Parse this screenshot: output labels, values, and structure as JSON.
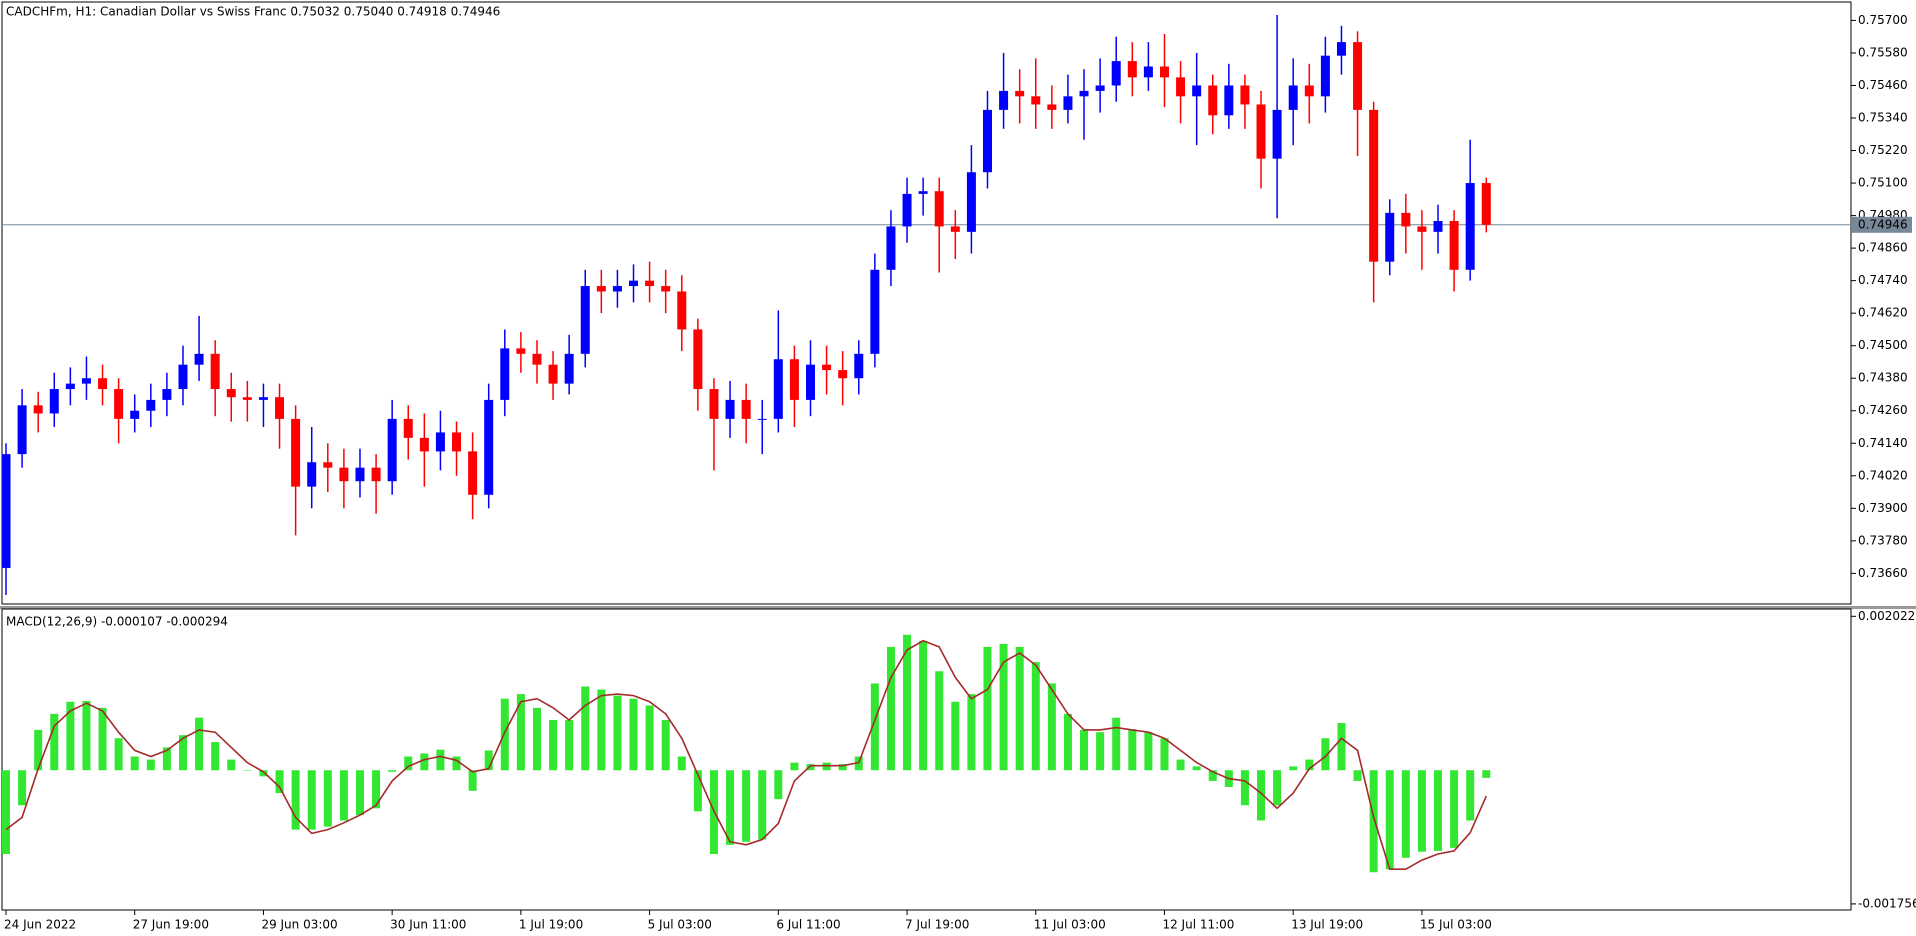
{
  "chart_data": [
    {
      "type": "candlestick",
      "title": "CADCHFm, H1:  Canadian Dollar vs Swiss Franc  0.75032 0.75040 0.74918 0.74946",
      "up_color": "#0000ff",
      "down_color": "#ff0000",
      "categories": [
        "24 Jun 2022",
        null,
        null,
        null,
        null,
        null,
        null,
        null,
        "27 Jun 19:00",
        null,
        null,
        null,
        null,
        null,
        null,
        null,
        "29 Jun 03:00",
        null,
        null,
        null,
        null,
        null,
        null,
        null,
        "30 Jun 11:00",
        null,
        null,
        null,
        null,
        null,
        null,
        null,
        "1 Jul 19:00",
        null,
        null,
        null,
        null,
        null,
        null,
        null,
        "5 Jul 03:00",
        null,
        null,
        null,
        null,
        null,
        null,
        null,
        "6 Jul 11:00",
        null,
        null,
        null,
        null,
        null,
        null,
        null,
        "7 Jul 19:00",
        null,
        null,
        null,
        null,
        null,
        null,
        null,
        "11 Jul 03:00",
        null,
        null,
        null,
        null,
        null,
        null,
        null,
        "12 Jul 11:00",
        null,
        null,
        null,
        null,
        null,
        null,
        null,
        "13 Jul 19:00",
        null,
        null,
        null,
        null,
        null,
        null,
        null,
        "15 Jul 03:00",
        null,
        null,
        null,
        null
      ],
      "open": [
        0.7368,
        0.741,
        0.7428,
        0.7425,
        0.7434,
        0.7436,
        0.7438,
        0.7434,
        0.7423,
        0.7426,
        0.743,
        0.7434,
        0.7443,
        0.7447,
        0.7434,
        0.7431,
        0.743,
        0.7431,
        0.7423,
        0.7398,
        0.7407,
        0.7405,
        0.74,
        0.7405,
        0.74,
        0.7423,
        0.7416,
        0.7411,
        0.7418,
        0.7411,
        0.7395,
        0.743,
        0.7449,
        0.7447,
        0.7443,
        0.7436,
        0.7447,
        0.7472,
        0.747,
        0.7472,
        0.7474,
        0.7472,
        0.747,
        0.7456,
        0.7434,
        0.7423,
        0.743,
        0.7423,
        0.7423,
        0.7445,
        0.743,
        0.7443,
        0.7441,
        0.7438,
        0.7447,
        0.7478,
        0.7494,
        0.7506,
        0.7507,
        0.7494,
        0.7492,
        0.7514,
        0.7537,
        0.7544,
        0.7542,
        0.7539,
        0.7537,
        0.7542,
        0.7544,
        0.7546,
        0.7555,
        0.7549,
        0.7553,
        0.7549,
        0.7542,
        0.7546,
        0.7535,
        0.7546,
        0.7539,
        0.7519,
        0.7537,
        0.7546,
        0.7542,
        0.7557,
        0.7562,
        0.7537,
        0.7481,
        0.7499,
        0.7494,
        0.7492,
        0.7496,
        0.7478,
        0.751
      ],
      "high": [
        0.7414,
        0.7434,
        0.7433,
        0.744,
        0.7442,
        0.7446,
        0.7443,
        0.7438,
        0.7432,
        0.7436,
        0.744,
        0.745,
        0.7461,
        0.7452,
        0.744,
        0.7437,
        0.7436,
        0.7436,
        0.7428,
        0.742,
        0.7414,
        0.7412,
        0.7412,
        0.741,
        0.743,
        0.7428,
        0.7425,
        0.7426,
        0.7422,
        0.7418,
        0.7436,
        0.7456,
        0.7455,
        0.7452,
        0.7448,
        0.7454,
        0.7478,
        0.7478,
        0.7478,
        0.748,
        0.7481,
        0.7478,
        0.7476,
        0.746,
        0.7438,
        0.7437,
        0.7436,
        0.743,
        0.7463,
        0.745,
        0.7452,
        0.745,
        0.7448,
        0.7452,
        0.7484,
        0.75,
        0.7512,
        0.7512,
        0.7512,
        0.75,
        0.7524,
        0.7544,
        0.7558,
        0.7552,
        0.7556,
        0.7546,
        0.755,
        0.7552,
        0.7556,
        0.7564,
        0.7562,
        0.7562,
        0.7565,
        0.7555,
        0.7558,
        0.755,
        0.7554,
        0.755,
        0.7544,
        0.7572,
        0.7556,
        0.7554,
        0.7564,
        0.7568,
        0.7566,
        0.754,
        0.7504,
        0.7506,
        0.75,
        0.7502,
        0.75,
        0.7526,
        0.7512
      ],
      "low": [
        0.7358,
        0.7405,
        0.7418,
        0.742,
        0.7428,
        0.743,
        0.7428,
        0.7414,
        0.7418,
        0.742,
        0.7424,
        0.7428,
        0.7437,
        0.7424,
        0.7422,
        0.7422,
        0.742,
        0.7412,
        0.738,
        0.739,
        0.7396,
        0.739,
        0.7394,
        0.7388,
        0.7395,
        0.7408,
        0.7398,
        0.7404,
        0.7402,
        0.7386,
        0.739,
        0.7424,
        0.744,
        0.7436,
        0.743,
        0.7432,
        0.7442,
        0.7462,
        0.7464,
        0.7466,
        0.7466,
        0.7462,
        0.7448,
        0.7426,
        0.7404,
        0.7416,
        0.7414,
        0.741,
        0.7418,
        0.742,
        0.7424,
        0.7432,
        0.7428,
        0.7432,
        0.7442,
        0.7472,
        0.7488,
        0.7498,
        0.7477,
        0.7482,
        0.7484,
        0.7508,
        0.753,
        0.7532,
        0.753,
        0.753,
        0.7532,
        0.7526,
        0.7536,
        0.754,
        0.7542,
        0.7544,
        0.7538,
        0.7532,
        0.7524,
        0.7528,
        0.753,
        0.753,
        0.7508,
        0.7497,
        0.7524,
        0.7532,
        0.7536,
        0.755,
        0.752,
        0.7466,
        0.7476,
        0.7484,
        0.7478,
        0.7484,
        0.747,
        0.7474,
        0.74918
      ],
      "close": [
        0.741,
        0.7428,
        0.7425,
        0.7434,
        0.7436,
        0.7438,
        0.7434,
        0.7423,
        0.7426,
        0.743,
        0.7434,
        0.7443,
        0.7447,
        0.7434,
        0.7431,
        0.743,
        0.7431,
        0.7423,
        0.7398,
        0.7407,
        0.7405,
        0.74,
        0.7405,
        0.74,
        0.7423,
        0.7416,
        0.7411,
        0.7418,
        0.7411,
        0.7395,
        0.743,
        0.7449,
        0.7447,
        0.7443,
        0.7436,
        0.7447,
        0.7472,
        0.747,
        0.7472,
        0.7474,
        0.7472,
        0.747,
        0.7456,
        0.7434,
        0.7423,
        0.743,
        0.7423,
        0.7423,
        0.7445,
        0.743,
        0.7443,
        0.7441,
        0.7438,
        0.7447,
        0.7478,
        0.7494,
        0.7506,
        0.7507,
        0.7494,
        0.7492,
        0.7514,
        0.7537,
        0.7544,
        0.7542,
        0.7539,
        0.7537,
        0.7542,
        0.7544,
        0.7546,
        0.7555,
        0.7549,
        0.7553,
        0.7549,
        0.7542,
        0.7546,
        0.7535,
        0.7546,
        0.7539,
        0.7519,
        0.7537,
        0.7546,
        0.7542,
        0.7557,
        0.7562,
        0.7537,
        0.7481,
        0.7499,
        0.7494,
        0.7492,
        0.7496,
        0.7478,
        0.751,
        0.74946
      ],
      "price_line": 0.74946,
      "price_line_color": "#778899",
      "ylim": [
        0.73547,
        0.75768
      ],
      "yticks": [
        {
          "value": 0.7366,
          "label": "0.73660"
        },
        {
          "value": 0.7378,
          "label": "0.73780"
        },
        {
          "value": 0.739,
          "label": "0.73900"
        },
        {
          "value": 0.7402,
          "label": "0.74020"
        },
        {
          "value": 0.7414,
          "label": "0.74140"
        },
        {
          "value": 0.7426,
          "label": "0.74260"
        },
        {
          "value": 0.7438,
          "label": "0.74380"
        },
        {
          "value": 0.745,
          "label": "0.74500"
        },
        {
          "value": 0.7462,
          "label": "0.74620"
        },
        {
          "value": 0.7474,
          "label": "0.74740"
        },
        {
          "value": 0.7486,
          "label": "0.74860"
        },
        {
          "value": 0.7498,
          "label": "0.74980"
        },
        {
          "value": 0.751,
          "label": "0.75100"
        },
        {
          "value": 0.7522,
          "label": "0.75220"
        },
        {
          "value": 0.7534,
          "label": "0.75340"
        },
        {
          "value": 0.7546,
          "label": "0.75460"
        },
        {
          "value": 0.7558,
          "label": "0.75580"
        },
        {
          "value": 0.757,
          "label": "0.75700"
        }
      ]
    },
    {
      "type": "macd",
      "title": "MACD(12,26,9) -0.000107 -0.000294",
      "histogram": {
        "color": "#32e632",
        "values": [
          -0.0011,
          -0.00046,
          0.00053,
          0.00074,
          0.0009,
          0.00091,
          0.00082,
          0.00042,
          0.00018,
          0.00014,
          0.0003,
          0.00046,
          0.00069,
          0.00037,
          0.00014,
          0,
          -8e-05,
          -0.0003,
          -0.00078,
          -0.00078,
          -0.00074,
          -0.00066,
          -0.00059,
          -0.0005,
          -2e-05,
          0.00018,
          0.00022,
          0.00027,
          0.00018,
          -0.00027,
          0.00026,
          0.00094,
          0.001,
          0.00082,
          0.00066,
          0.00066,
          0.0011,
          0.00106,
          0.00098,
          0.00094,
          0.00085,
          0.00066,
          0.00018,
          -0.00054,
          -0.0011,
          -0.00098,
          -0.00094,
          -0.00091,
          -0.00038,
          0.0001,
          8e-05,
          0.0001,
          8e-05,
          0.00018,
          0.00114,
          0.00162,
          0.00178,
          0.0017,
          0.0013,
          0.0009,
          0.001,
          0.00162,
          0.00166,
          0.00162,
          0.00142,
          0.00114,
          0.00074,
          0.00053,
          0.0005,
          0.00069,
          0.00054,
          0.0005,
          0.00042,
          0.00014,
          5e-05,
          -0.00014,
          -0.00022,
          -0.00046,
          -0.00066,
          -0.00046,
          5e-05,
          0.00014,
          0.00042,
          0.00062,
          -0.00014,
          -0.00134,
          -0.0013,
          -0.00115,
          -0.00107,
          -0.00106,
          -0.00102,
          -0.00066,
          -0.0001
        ]
      },
      "signal": {
        "color": "#a52a2a",
        "values": [
          -0.00078,
          -0.00062,
          2e-05,
          0.00058,
          0.00078,
          0.00088,
          0.00078,
          0.0005,
          0.00026,
          0.00018,
          0.00026,
          0.00042,
          0.00053,
          0.0005,
          0.0003,
          0.0001,
          -2e-05,
          -0.00022,
          -0.00062,
          -0.00083,
          -0.00078,
          -0.00069,
          -0.00059,
          -0.00046,
          -0.00014,
          5e-05,
          0.00014,
          0.00018,
          0.00013,
          -2e-05,
          2e-05,
          0.0005,
          0.0009,
          0.00094,
          0.00082,
          0.00066,
          0.00085,
          0.00098,
          0.001,
          0.00098,
          0.0009,
          0.00074,
          0.00042,
          -6e-05,
          -0.00054,
          -0.00094,
          -0.00098,
          -0.00091,
          -0.0007,
          -0.00014,
          6e-05,
          6e-05,
          6e-05,
          0.0001,
          0.00066,
          0.00122,
          0.00158,
          0.0017,
          0.00162,
          0.00122,
          0.00094,
          0.00106,
          0.00142,
          0.00154,
          0.00138,
          0.00106,
          0.00074,
          0.00053,
          0.00053,
          0.00056,
          0.00053,
          0.0005,
          0.00042,
          0.00026,
          0.0001,
          -2e-05,
          -0.00011,
          -0.00014,
          -0.0003,
          -0.0005,
          -0.0003,
          2e-05,
          0.00018,
          0.00042,
          0.00026,
          -0.00062,
          -0.0013,
          -0.0013,
          -0.00118,
          -0.0011,
          -0.00106,
          -0.00082,
          -0.00034
        ]
      },
      "ylim": [
        -0.001836,
        0.002118
      ],
      "yticks": [
        0.002022,
        -0.001756
      ]
    }
  ]
}
